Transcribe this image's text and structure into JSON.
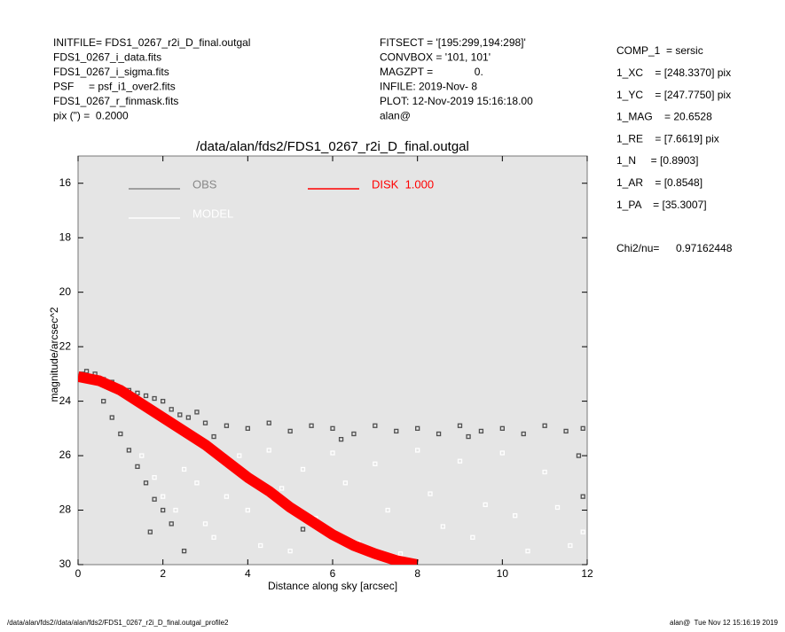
{
  "header": {
    "left": [
      "INITFILE= FDS1_0267_r2i_D_final.outgal",
      "FDS1_0267_i_data.fits",
      "FDS1_0267_i_sigma.fits",
      "PSF     = psf_i1_over2.fits",
      "FDS1_0267_r_finmask.fits",
      "pix (\") =  0.2000"
    ],
    "middle": [
      "FITSECT = '[195:299,194:298]'",
      "CONVBOX = '101, 101'",
      "MAGZPT =              0.",
      "INFILE: 2019-Nov- 8",
      "PLOT: 12-Nov-2019 15:16:18.00",
      "alan@"
    ],
    "right": [
      "COMP_1  = sersic",
      "1_XC    = [248.3370] pix",
      "1_YC    = [247.7750] pix",
      "1_MAG    = 20.6528",
      "1_RE    = [7.6619] pix",
      "1_N     = [0.8903]",
      "1_AR    = [0.8548]",
      "1_PA    = [35.3007]"
    ],
    "chi2_label": "Chi2/nu=",
    "chi2_value": "0.97162448"
  },
  "footer": {
    "left": "/data/alan/fds2//data/alan/fds2/FDS1_0267_r2i_D_final.outgal_profile2",
    "right": "alan@  Tue Nov 12 15:16:19 2019"
  },
  "chart_data": {
    "type": "scatter",
    "title": "/data/alan/fds2/FDS1_0267_r2i_D_final.outgal",
    "x_label": "Distance along sky [arcsec]",
    "y_label": "magnitude/arcsec^2",
    "xlim": [
      0,
      12
    ],
    "xticks": [
      0,
      2,
      4,
      6,
      8,
      10,
      12
    ],
    "ylim": [
      30,
      15
    ],
    "yticks": [
      16,
      18,
      20,
      22,
      24,
      26,
      28,
      30
    ],
    "series": [
      {
        "name": "OBS",
        "color": "#505050",
        "x": [
          0.1,
          0.2,
          0.3,
          0.4,
          0.6,
          0.8,
          1,
          1.2,
          1.4,
          1.6,
          1.8,
          2,
          2.2,
          2.4,
          2.6,
          2.8,
          3,
          3.5,
          4,
          4.5,
          5,
          5.5,
          6,
          6.5,
          7,
          7.5,
          8,
          8.5,
          9,
          9.5,
          10,
          10.5,
          11,
          11.5,
          11.9,
          3.2,
          6.2,
          9.2,
          0.6,
          0.8,
          1,
          1.2,
          1.4,
          1.6,
          1.8,
          2,
          2.2,
          1.7,
          2.5,
          5.3,
          11.8,
          11.9
        ],
        "values": [
          23,
          22.9,
          23.1,
          23,
          23.2,
          23.3,
          23.5,
          23.6,
          23.7,
          23.8,
          23.9,
          24,
          24.3,
          24.5,
          24.6,
          24.4,
          24.8,
          24.9,
          25,
          24.8,
          25.1,
          24.9,
          25,
          25.2,
          24.9,
          25.1,
          25,
          25.2,
          24.9,
          25.1,
          25,
          25.2,
          24.9,
          25.1,
          25,
          25.3,
          25.4,
          25.3,
          24,
          24.6,
          25.2,
          25.8,
          26.4,
          27,
          27.6,
          28,
          28.5,
          28.8,
          29.5,
          28.7,
          26,
          27.5
        ]
      },
      {
        "name": "MODEL",
        "color": "#ffffff",
        "x": [
          1.5,
          1.8,
          2,
          2.3,
          2.5,
          2.8,
          3,
          3.2,
          3.5,
          3.8,
          4,
          4.3,
          4.5,
          4.8,
          5,
          5.3,
          5.6,
          6,
          6.3,
          6.6,
          7,
          7.3,
          7.6,
          8,
          8.3,
          8.6,
          9,
          9.3,
          9.6,
          10,
          10.3,
          10.6,
          11,
          11.3,
          11.6,
          11.9
        ],
        "values": [
          26,
          26.8,
          27.5,
          28,
          26.5,
          27,
          28.5,
          29,
          27.5,
          26,
          28,
          29.3,
          25.8,
          27.2,
          29.5,
          26.5,
          28.3,
          25.9,
          27,
          29.2,
          26.3,
          28,
          29.6,
          25.8,
          27.4,
          28.6,
          26.2,
          29,
          27.8,
          25.9,
          28.2,
          29.5,
          26.6,
          27.9,
          29.3,
          28.8
        ]
      },
      {
        "name": "DISK  1.000",
        "color": "#ff0000",
        "line": true,
        "x": [
          0,
          0.5,
          1,
          1.5,
          2,
          2.5,
          3,
          3.5,
          4,
          4.5,
          5,
          5.5,
          6,
          6.5,
          7,
          7.5,
          8
        ],
        "values": [
          23.1,
          23.25,
          23.6,
          24.1,
          24.6,
          25.1,
          25.6,
          26.2,
          26.8,
          27.3,
          27.9,
          28.4,
          28.9,
          29.3,
          29.6,
          29.85,
          30
        ]
      }
    ]
  }
}
